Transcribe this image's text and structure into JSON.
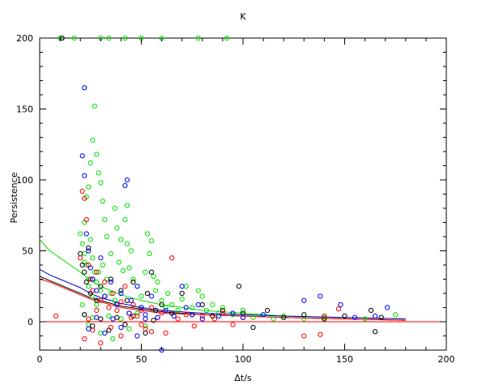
{
  "chart_data": {
    "type": "scatter",
    "title": "K",
    "xlabel": "Δt/s",
    "ylabel": "Persistence",
    "xlim": [
      0,
      200
    ],
    "ylim": [
      -20,
      200
    ],
    "x_ticks": [
      0,
      50,
      100,
      150,
      200
    ],
    "x_tick_labels": [
      "0",
      "50",
      "100",
      "150",
      "200"
    ],
    "y_ticks": [
      0,
      50,
      100,
      150,
      200
    ],
    "y_tick_labels": [
      "0",
      "50",
      "100",
      "150",
      "200"
    ],
    "grid": false,
    "legend": "none",
    "series": [
      {
        "color": "#00e000",
        "marker": "circle",
        "points": [
          [
            20,
            62
          ],
          [
            21,
            55
          ],
          [
            22,
            48
          ],
          [
            23,
            40
          ],
          [
            24,
            30
          ],
          [
            22,
            70
          ],
          [
            25,
            58
          ],
          [
            26,
            45
          ],
          [
            27,
            35
          ],
          [
            28,
            28
          ],
          [
            23,
            88
          ],
          [
            24,
            95
          ],
          [
            25,
            112
          ],
          [
            26,
            128
          ],
          [
            27,
            152
          ],
          [
            28,
            118
          ],
          [
            29,
            105
          ],
          [
            30,
            98
          ],
          [
            31,
            85
          ],
          [
            32,
            72
          ],
          [
            22,
            42
          ],
          [
            24,
            25
          ],
          [
            26,
            18
          ],
          [
            28,
            12
          ],
          [
            30,
            22
          ],
          [
            33,
            60
          ],
          [
            35,
            48
          ],
          [
            37,
            80
          ],
          [
            38,
            66
          ],
          [
            40,
            58
          ],
          [
            42,
            72
          ],
          [
            43,
            82
          ],
          [
            44,
            38
          ],
          [
            45,
            50
          ],
          [
            46,
            30
          ],
          [
            48,
            25
          ],
          [
            50,
            18
          ],
          [
            52,
            35
          ],
          [
            53,
            62
          ],
          [
            54,
            48
          ],
          [
            55,
            57
          ],
          [
            56,
            32
          ],
          [
            57,
            22
          ],
          [
            58,
            28
          ],
          [
            60,
            15
          ],
          [
            62,
            10
          ],
          [
            63,
            20
          ],
          [
            65,
            12
          ],
          [
            68,
            8
          ],
          [
            70,
            16
          ],
          [
            72,
            25
          ],
          [
            75,
            10
          ],
          [
            78,
            22
          ],
          [
            80,
            18
          ],
          [
            82,
            8
          ],
          [
            85,
            12
          ],
          [
            88,
            6
          ],
          [
            90,
            10
          ],
          [
            95,
            5
          ],
          [
            100,
            8
          ],
          [
            105,
            3
          ],
          [
            110,
            5
          ],
          [
            115,
            2
          ],
          [
            120,
            4
          ],
          [
            130,
            2
          ],
          [
            140,
            3
          ],
          [
            160,
            2
          ],
          [
            175,
            5
          ],
          [
            21,
            12
          ],
          [
            22,
            5
          ],
          [
            24,
            -2
          ],
          [
            26,
            3
          ],
          [
            30,
            -8
          ],
          [
            34,
            4
          ],
          [
            36,
            -12
          ],
          [
            40,
            2
          ],
          [
            44,
            -5
          ],
          [
            48,
            6
          ],
          [
            52,
            -3
          ],
          [
            29,
            35
          ],
          [
            31,
            40
          ],
          [
            33,
            30
          ],
          [
            35,
            20
          ],
          [
            37,
            15
          ],
          [
            39,
            42
          ],
          [
            41,
            36
          ],
          [
            43,
            55
          ],
          [
            30,
            200
          ],
          [
            34,
            200
          ],
          [
            42,
            200
          ],
          [
            50,
            200
          ],
          [
            60,
            200
          ],
          [
            78,
            200
          ],
          [
            92,
            200
          ],
          [
            10,
            200
          ],
          [
            17,
            200
          ]
        ]
      },
      {
        "color": "#000000",
        "marker": "circle",
        "points": [
          [
            20,
            48
          ],
          [
            21,
            40
          ],
          [
            22,
            35
          ],
          [
            23,
            28
          ],
          [
            24,
            52
          ],
          [
            25,
            20
          ],
          [
            26,
            30
          ],
          [
            28,
            15
          ],
          [
            30,
            25
          ],
          [
            32,
            18
          ],
          [
            35,
            30
          ],
          [
            38,
            12
          ],
          [
            40,
            22
          ],
          [
            43,
            15
          ],
          [
            46,
            28
          ],
          [
            50,
            10
          ],
          [
            53,
            20
          ],
          [
            55,
            35
          ],
          [
            57,
            8
          ],
          [
            60,
            12
          ],
          [
            65,
            6
          ],
          [
            70,
            20
          ],
          [
            75,
            5
          ],
          [
            80,
            12
          ],
          [
            85,
            4
          ],
          [
            90,
            8
          ],
          [
            98,
            25
          ],
          [
            100,
            6
          ],
          [
            105,
            -4
          ],
          [
            112,
            8
          ],
          [
            120,
            3
          ],
          [
            130,
            5
          ],
          [
            140,
            2
          ],
          [
            150,
            4
          ],
          [
            163,
            8
          ],
          [
            165,
            -7
          ],
          [
            168,
            3
          ],
          [
            22,
            5
          ],
          [
            26,
            -3
          ],
          [
            30,
            2
          ],
          [
            34,
            -6
          ],
          [
            38,
            3
          ],
          [
            42,
            -2
          ],
          [
            46,
            4
          ],
          [
            52,
            -8
          ],
          [
            56,
            1
          ],
          [
            11,
            200
          ]
        ]
      },
      {
        "color": "#ff0000",
        "marker": "circle",
        "points": [
          [
            8,
            4
          ],
          [
            20,
            45
          ],
          [
            21,
            92
          ],
          [
            22,
            87
          ],
          [
            23,
            72
          ],
          [
            24,
            40
          ],
          [
            25,
            30
          ],
          [
            26,
            22
          ],
          [
            28,
            35
          ],
          [
            30,
            15
          ],
          [
            32,
            28
          ],
          [
            34,
            10
          ],
          [
            36,
            20
          ],
          [
            38,
            8
          ],
          [
            40,
            14
          ],
          [
            42,
            25
          ],
          [
            44,
            6
          ],
          [
            46,
            12
          ],
          [
            48,
            4
          ],
          [
            50,
            8
          ],
          [
            52,
            -5
          ],
          [
            55,
            10
          ],
          [
            58,
            3
          ],
          [
            60,
            6
          ],
          [
            62,
            -8
          ],
          [
            65,
            45
          ],
          [
            68,
            2
          ],
          [
            72,
            5
          ],
          [
            76,
            -3
          ],
          [
            80,
            4
          ],
          [
            86,
            2
          ],
          [
            90,
            6
          ],
          [
            95,
            -2
          ],
          [
            100,
            3
          ],
          [
            130,
            -10
          ],
          [
            138,
            -9
          ],
          [
            140,
            4
          ],
          [
            147,
            9
          ],
          [
            22,
            -12
          ],
          [
            24,
            2
          ],
          [
            26,
            -6
          ],
          [
            28,
            8
          ],
          [
            30,
            -15
          ],
          [
            35,
            -4
          ],
          [
            40,
            -10
          ],
          [
            45,
            3
          ],
          [
            50,
            -2
          ],
          [
            55,
            -7
          ]
        ]
      },
      {
        "color": "#0000ff",
        "marker": "circle",
        "points": [
          [
            21,
            117
          ],
          [
            22,
            103
          ],
          [
            22,
            165
          ],
          [
            23,
            62
          ],
          [
            24,
            50
          ],
          [
            25,
            38
          ],
          [
            26,
            30
          ],
          [
            28,
            22
          ],
          [
            30,
            45
          ],
          [
            32,
            18
          ],
          [
            35,
            28
          ],
          [
            38,
            12
          ],
          [
            40,
            20
          ],
          [
            42,
            96
          ],
          [
            43,
            100
          ],
          [
            45,
            15
          ],
          [
            48,
            25
          ],
          [
            50,
            10
          ],
          [
            52,
            5
          ],
          [
            55,
            18
          ],
          [
            58,
            3
          ],
          [
            60,
            -20
          ],
          [
            62,
            8
          ],
          [
            66,
            4
          ],
          [
            70,
            25
          ],
          [
            72,
            10
          ],
          [
            75,
            5
          ],
          [
            78,
            12
          ],
          [
            80,
            2
          ],
          [
            88,
            4
          ],
          [
            95,
            6
          ],
          [
            100,
            3
          ],
          [
            110,
            5
          ],
          [
            130,
            15
          ],
          [
            138,
            18
          ],
          [
            148,
            12
          ],
          [
            155,
            3
          ],
          [
            165,
            4
          ],
          [
            171,
            10
          ],
          [
            24,
            -5
          ],
          [
            28,
            3
          ],
          [
            32,
            -8
          ],
          [
            36,
            2
          ],
          [
            40,
            -4
          ],
          [
            44,
            6
          ],
          [
            48,
            -10
          ],
          [
            52,
            2
          ]
        ]
      }
    ],
    "curves": [
      {
        "color": "#00e000",
        "points": [
          [
            0,
            58
          ],
          [
            5,
            50
          ],
          [
            10,
            45
          ],
          [
            15,
            40
          ],
          [
            20,
            35
          ],
          [
            25,
            29
          ],
          [
            30,
            25
          ],
          [
            40,
            19
          ],
          [
            50,
            15
          ],
          [
            60,
            12
          ],
          [
            80,
            8
          ],
          [
            100,
            6
          ],
          [
            120,
            4
          ],
          [
            150,
            3
          ],
          [
            180,
            2
          ]
        ]
      },
      {
        "color": "#0000c0",
        "points": [
          [
            0,
            37
          ],
          [
            5,
            33
          ],
          [
            10,
            30
          ],
          [
            15,
            27
          ],
          [
            20,
            24
          ],
          [
            25,
            20
          ],
          [
            30,
            17
          ],
          [
            40,
            13
          ],
          [
            50,
            10
          ],
          [
            60,
            8
          ],
          [
            80,
            6
          ],
          [
            100,
            5
          ],
          [
            120,
            4
          ],
          [
            150,
            3
          ],
          [
            180,
            2
          ]
        ]
      },
      {
        "color": "#000000",
        "points": [
          [
            0,
            32
          ],
          [
            5,
            29
          ],
          [
            10,
            26
          ],
          [
            15,
            23
          ],
          [
            20,
            20
          ],
          [
            25,
            17
          ],
          [
            30,
            15
          ],
          [
            40,
            11
          ],
          [
            50,
            9
          ],
          [
            60,
            7
          ],
          [
            80,
            5
          ],
          [
            100,
            4
          ],
          [
            120,
            3
          ],
          [
            150,
            2
          ],
          [
            180,
            1
          ]
        ]
      },
      {
        "color": "#ff0000",
        "points": [
          [
            0,
            30
          ],
          [
            5,
            28
          ],
          [
            10,
            25
          ],
          [
            15,
            22
          ],
          [
            20,
            19
          ],
          [
            25,
            16
          ],
          [
            30,
            14
          ],
          [
            40,
            10
          ],
          [
            50,
            8
          ],
          [
            60,
            6
          ],
          [
            80,
            5
          ],
          [
            100,
            4
          ],
          [
            120,
            3
          ],
          [
            150,
            2
          ],
          [
            180,
            1
          ]
        ]
      },
      {
        "color": "#ff0000",
        "points": [
          [
            0,
            0
          ],
          [
            200,
            0
          ]
        ]
      }
    ]
  }
}
